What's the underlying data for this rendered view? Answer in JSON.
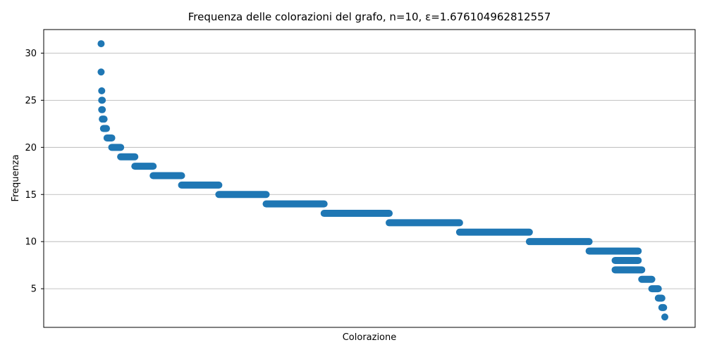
{
  "chart_data": {
    "type": "scatter",
    "title": "Frequenza delle colorazioni del grafo, n=10, ε=1.676104962812557",
    "xlabel": "Colorazione",
    "ylabel": "Frequenza",
    "ylim": [
      0.9,
      32.5
    ],
    "xlim": [
      0,
      1000
    ],
    "yticks": [
      5,
      10,
      15,
      20,
      25,
      30
    ],
    "grid": "horizontal",
    "color": "#1f77b4",
    "series": [
      {
        "segments": [
          {
            "y": 31,
            "x_start": 47,
            "x_end": 47
          },
          {
            "y": 28,
            "x_start": 47,
            "x_end": 47
          },
          {
            "y": 26,
            "x_start": 48,
            "x_end": 48
          },
          {
            "y": 25,
            "x_start": 48,
            "x_end": 49
          },
          {
            "y": 24,
            "x_start": 48,
            "x_end": 49
          },
          {
            "y": 23,
            "x_start": 49,
            "x_end": 52
          },
          {
            "y": 22,
            "x_start": 51,
            "x_end": 56
          },
          {
            "y": 21,
            "x_start": 57,
            "x_end": 65
          },
          {
            "y": 20,
            "x_start": 65,
            "x_end": 80
          },
          {
            "y": 19,
            "x_start": 80,
            "x_end": 104
          },
          {
            "y": 18,
            "x_start": 104,
            "x_end": 135
          },
          {
            "y": 17,
            "x_start": 135,
            "x_end": 183
          },
          {
            "y": 16,
            "x_start": 183,
            "x_end": 246
          },
          {
            "y": 15,
            "x_start": 246,
            "x_end": 326
          },
          {
            "y": 14,
            "x_start": 326,
            "x_end": 424
          },
          {
            "y": 13,
            "x_start": 424,
            "x_end": 534
          },
          {
            "y": 12,
            "x_start": 534,
            "x_end": 653
          },
          {
            "y": 11,
            "x_start": 653,
            "x_end": 771
          },
          {
            "y": 10,
            "x_start": 771,
            "x_end": 872
          },
          {
            "y": 9,
            "x_start": 872,
            "x_end": 955
          },
          {
            "y": 8,
            "x_start": 955,
            "x_end": 916
          },
          {
            "y": 7,
            "x_start": 916,
            "x_end": 961
          },
          {
            "y": 6,
            "x_start": 961,
            "x_end": 978
          },
          {
            "y": 5,
            "x_start": 978,
            "x_end": 989
          },
          {
            "y": 4,
            "x_start": 989,
            "x_end": 995
          },
          {
            "y": 3,
            "x_start": 995,
            "x_end": 998
          },
          {
            "y": 2,
            "x_start": 1000,
            "x_end": 1000
          }
        ]
      }
    ]
  }
}
